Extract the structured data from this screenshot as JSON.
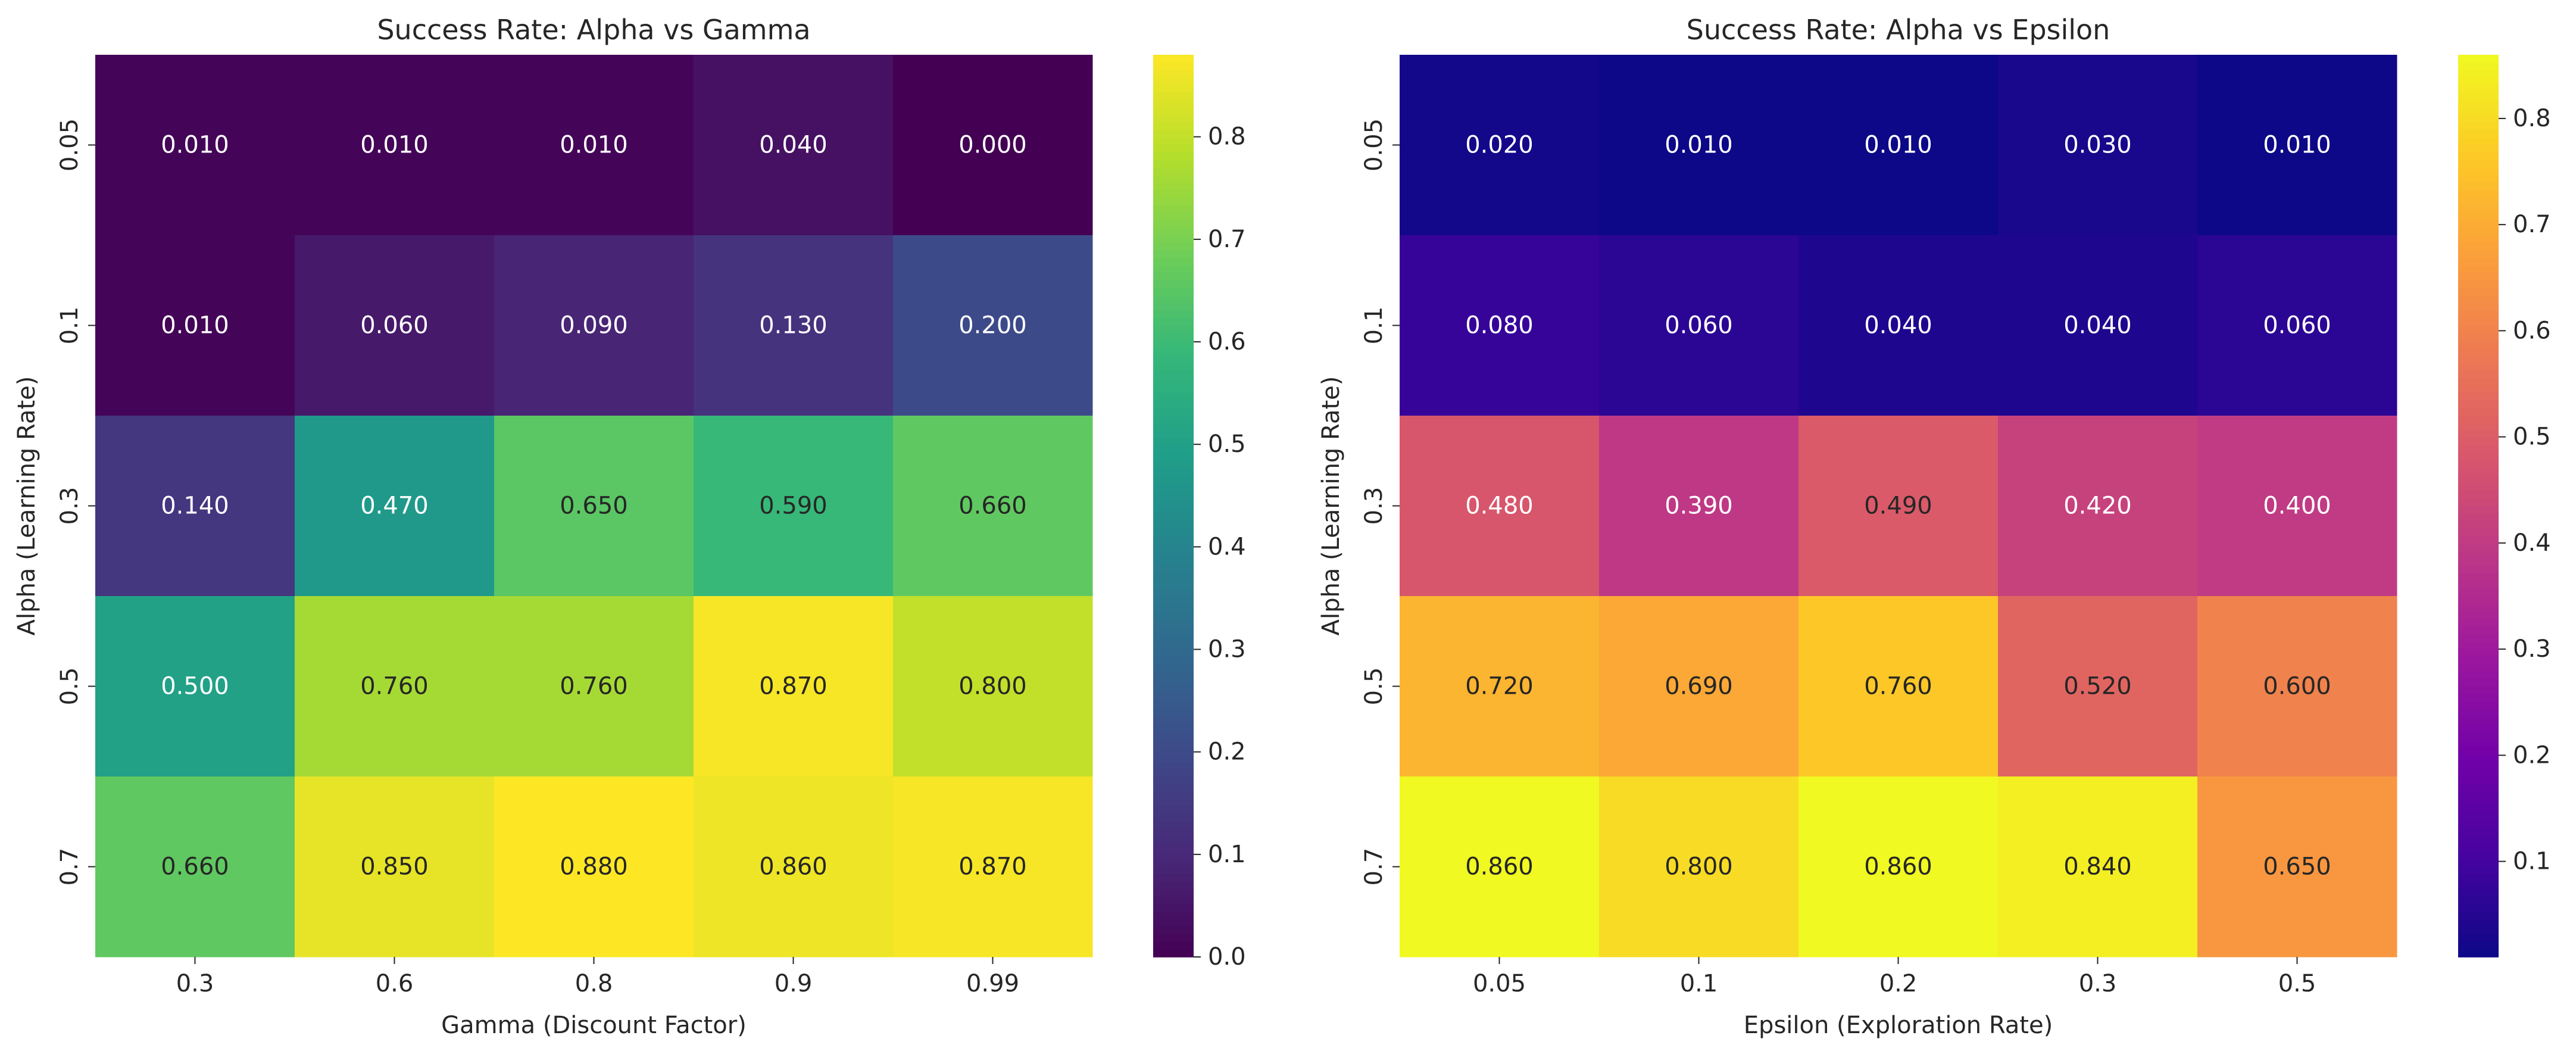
{
  "chart_data": [
    {
      "type": "heatmap",
      "title": "Success Rate: Alpha vs Gamma",
      "xlabel": "Gamma (Discount Factor)",
      "ylabel": "Alpha (Learning Rate)",
      "x_categories": [
        "0.3",
        "0.6",
        "0.8",
        "0.9",
        "0.99"
      ],
      "y_categories": [
        "0.05",
        "0.1",
        "0.3",
        "0.5",
        "0.7"
      ],
      "values": [
        [
          0.01,
          0.01,
          0.01,
          0.04,
          0.0
        ],
        [
          0.01,
          0.06,
          0.09,
          0.13,
          0.2
        ],
        [
          0.14,
          0.47,
          0.65,
          0.59,
          0.66
        ],
        [
          0.5,
          0.76,
          0.76,
          0.87,
          0.8
        ],
        [
          0.66,
          0.85,
          0.88,
          0.86,
          0.87
        ]
      ],
      "value_labels": [
        [
          "0.010",
          "0.010",
          "0.010",
          "0.040",
          "0.000"
        ],
        [
          "0.010",
          "0.060",
          "0.090",
          "0.130",
          "0.200"
        ],
        [
          "0.140",
          "0.470",
          "0.650",
          "0.590",
          "0.660"
        ],
        [
          "0.500",
          "0.760",
          "0.760",
          "0.870",
          "0.800"
        ],
        [
          "0.660",
          "0.850",
          "0.880",
          "0.860",
          "0.870"
        ]
      ],
      "colormap": "viridis",
      "vmin": 0.0,
      "vmax": 0.88,
      "colorbar_ticks": [
        0.0,
        0.1,
        0.2,
        0.3,
        0.4,
        0.5,
        0.6,
        0.7,
        0.8
      ],
      "colorbar_tick_labels": [
        "0.0",
        "0.1",
        "0.2",
        "0.3",
        "0.4",
        "0.5",
        "0.6",
        "0.7",
        "0.8"
      ]
    },
    {
      "type": "heatmap",
      "title": "Success Rate: Alpha vs Epsilon",
      "xlabel": "Epsilon (Exploration Rate)",
      "ylabel": "Alpha (Learning Rate)",
      "x_categories": [
        "0.05",
        "0.1",
        "0.2",
        "0.3",
        "0.5"
      ],
      "y_categories": [
        "0.05",
        "0.1",
        "0.3",
        "0.5",
        "0.7"
      ],
      "values": [
        [
          0.02,
          0.01,
          0.01,
          0.03,
          0.01
        ],
        [
          0.08,
          0.06,
          0.04,
          0.04,
          0.06
        ],
        [
          0.48,
          0.39,
          0.49,
          0.42,
          0.4
        ],
        [
          0.72,
          0.69,
          0.76,
          0.52,
          0.6
        ],
        [
          0.86,
          0.8,
          0.86,
          0.84,
          0.65
        ]
      ],
      "value_labels": [
        [
          "0.020",
          "0.010",
          "0.010",
          "0.030",
          "0.010"
        ],
        [
          "0.080",
          "0.060",
          "0.040",
          "0.040",
          "0.060"
        ],
        [
          "0.480",
          "0.390",
          "0.490",
          "0.420",
          "0.400"
        ],
        [
          "0.720",
          "0.690",
          "0.760",
          "0.520",
          "0.600"
        ],
        [
          "0.860",
          "0.800",
          "0.860",
          "0.840",
          "0.650"
        ]
      ],
      "colormap": "plasma",
      "vmin": 0.01,
      "vmax": 0.86,
      "colorbar_ticks": [
        0.1,
        0.2,
        0.3,
        0.4,
        0.5,
        0.6,
        0.7,
        0.8
      ],
      "colorbar_tick_labels": [
        "0.1",
        "0.2",
        "0.3",
        "0.4",
        "0.5",
        "0.6",
        "0.7",
        "0.8"
      ]
    }
  ]
}
